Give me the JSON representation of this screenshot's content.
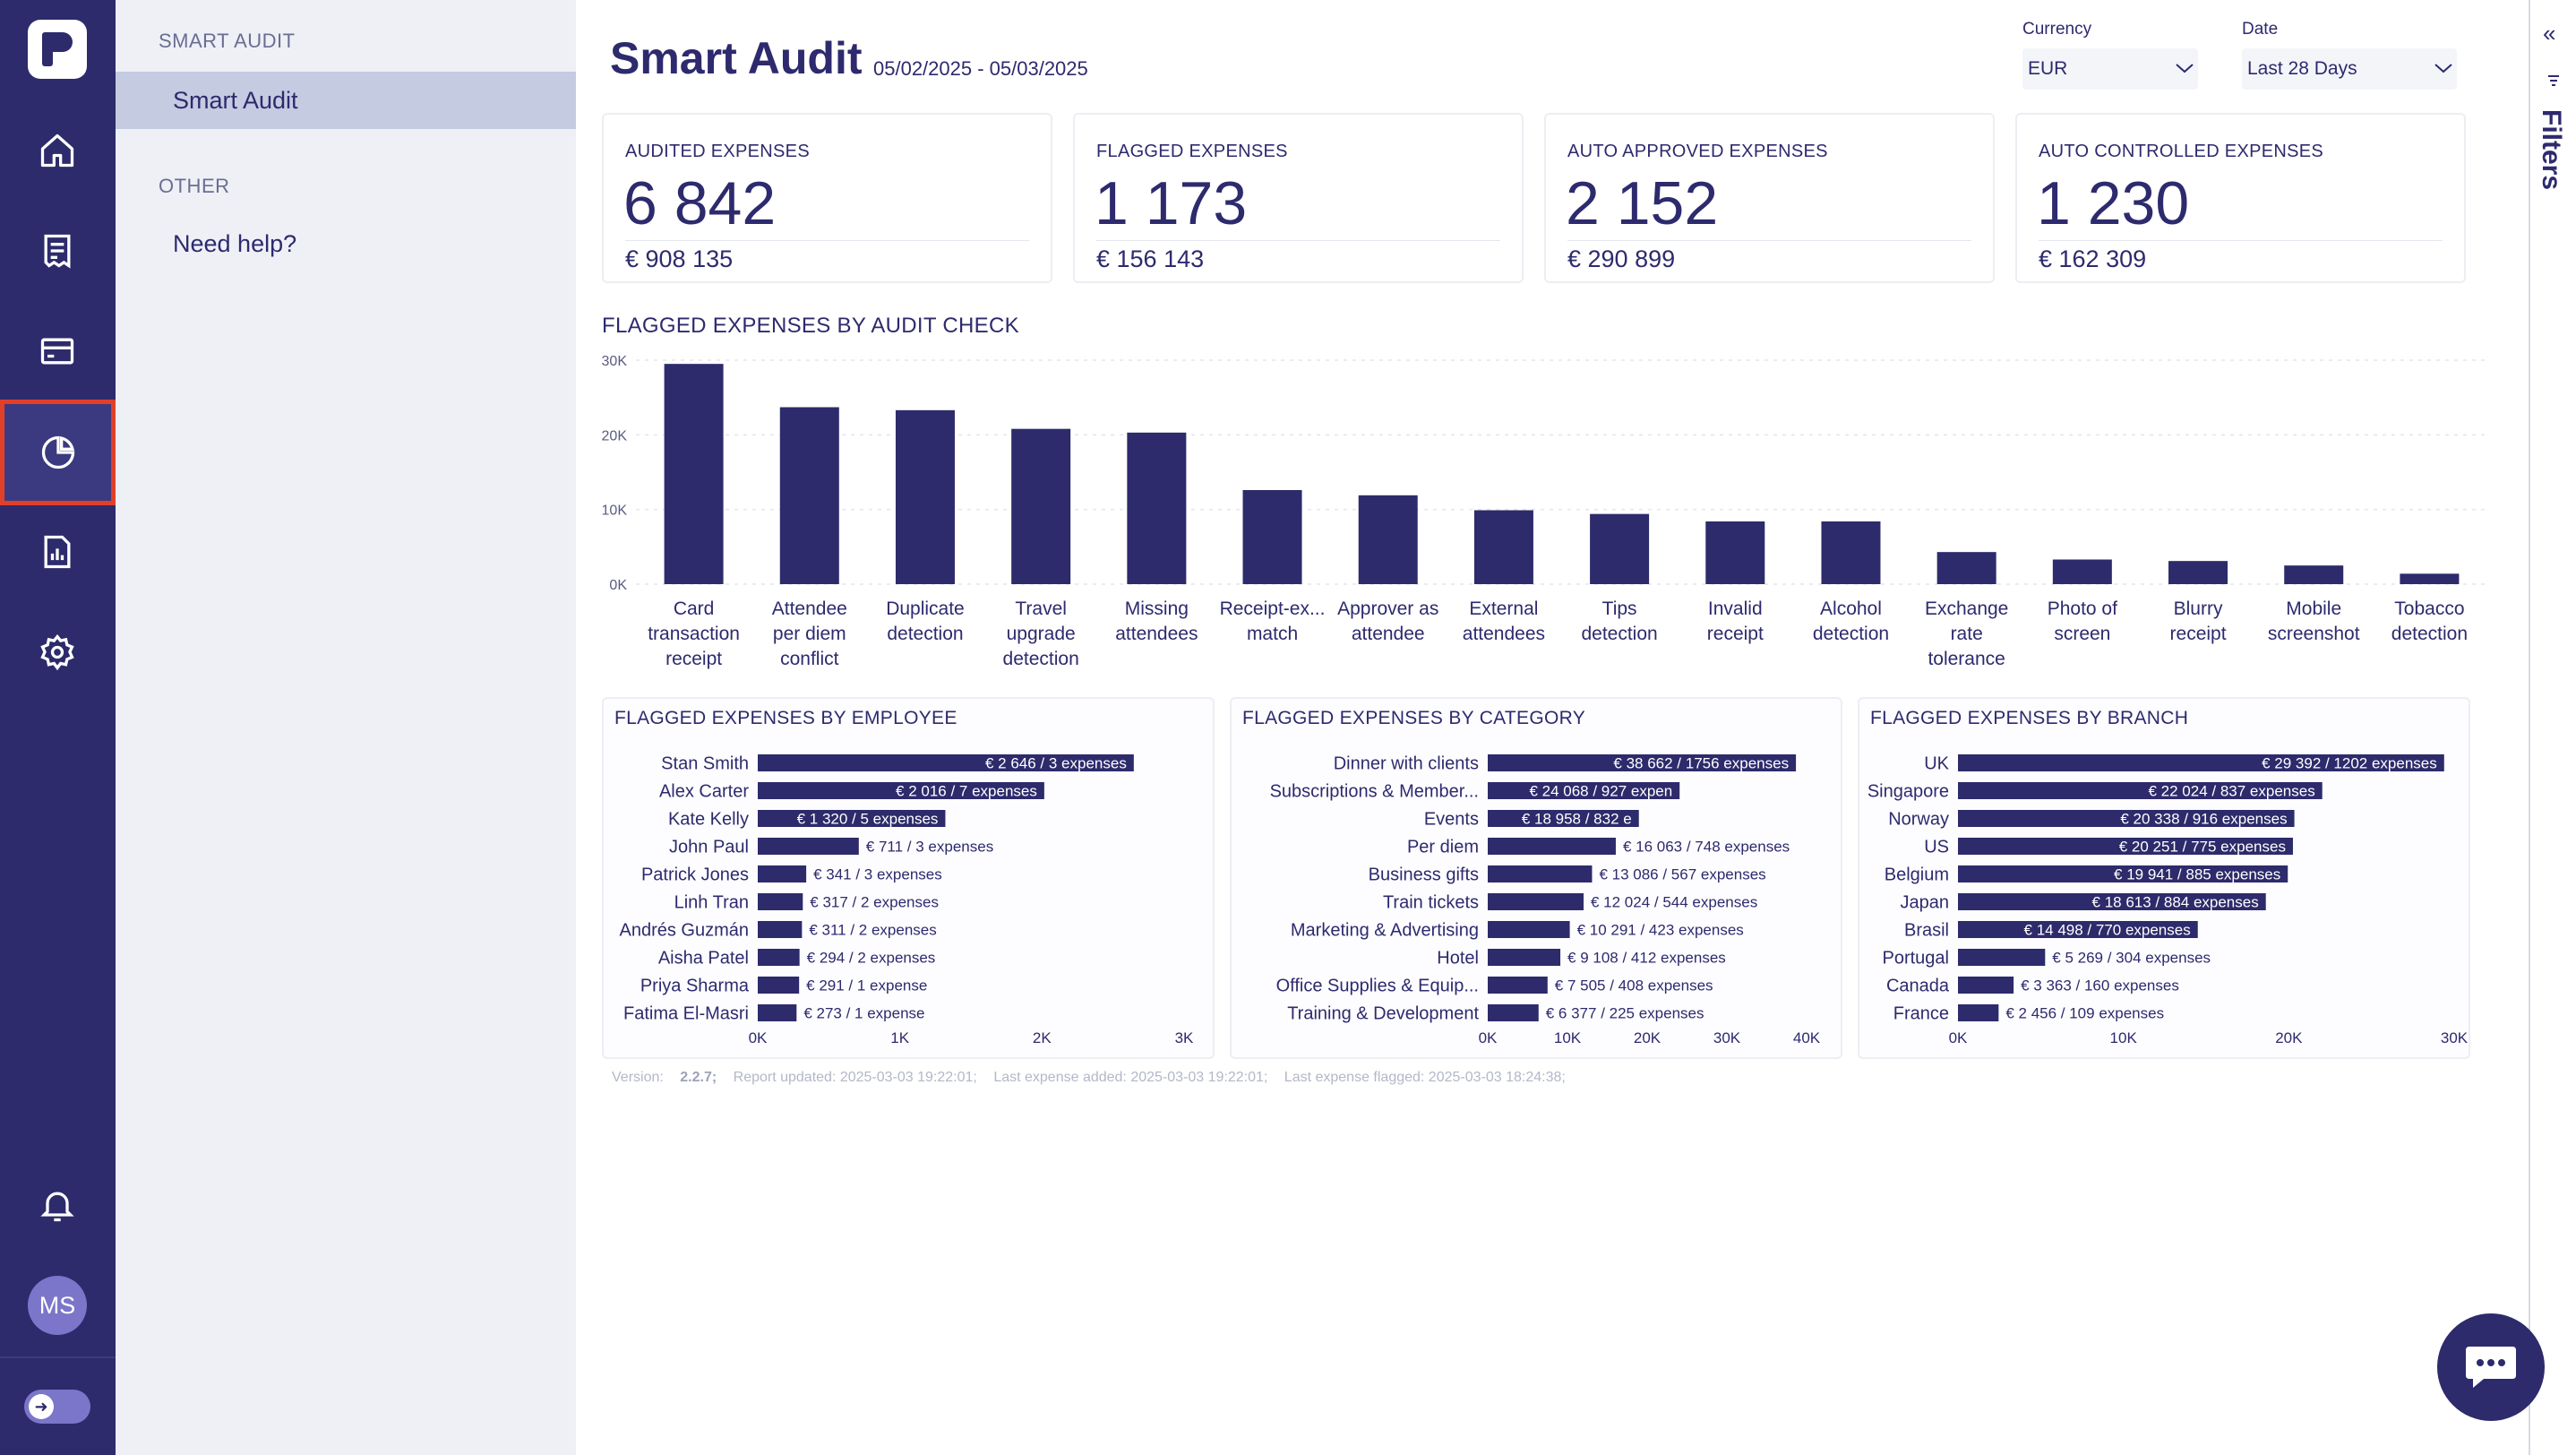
{
  "colors": {
    "rail": "#2d2b6b",
    "bar": "#2d2b6b",
    "accent_highlight": "#e0402a",
    "subnav_bg": "#eef0f6"
  },
  "rail": {
    "items": [
      {
        "name": "home-icon"
      },
      {
        "name": "receipt-icon"
      },
      {
        "name": "card-icon"
      },
      {
        "name": "pie-chart-icon",
        "active": true
      },
      {
        "name": "report-icon"
      },
      {
        "name": "gear-icon"
      }
    ],
    "bell_icon": "bell-icon",
    "avatar_initials": "MS"
  },
  "subnav": {
    "section_smart_audit": "SMART AUDIT",
    "item_smart_audit": "Smart Audit",
    "section_other": "OTHER",
    "item_need_help": "Need help?"
  },
  "header": {
    "title": "Smart Audit",
    "date_range": "05/02/2025 - 05/03/2025",
    "currency_label": "Currency",
    "currency_value": "EUR",
    "date_label": "Date",
    "date_value": "Last 28 Days"
  },
  "kpis": [
    {
      "label": "AUDITED EXPENSES",
      "count": "6 842",
      "amount": "€ 908 135"
    },
    {
      "label": "FLAGGED EXPENSES",
      "count": "1 173",
      "amount": "€ 156 143"
    },
    {
      "label": "AUTO APPROVED EXPENSES",
      "count": "2 152",
      "amount": "€ 290 899"
    },
    {
      "label": "AUTO CONTROLLED EXPENSES",
      "count": "1 230",
      "amount": "€ 162 309"
    }
  ],
  "chart_data": [
    {
      "type": "bar",
      "title": "FLAGGED EXPENSES BY AUDIT CHECK",
      "categories": [
        [
          "Card",
          "transaction",
          "receipt"
        ],
        [
          "Attendee",
          "per diem",
          "conflict"
        ],
        [
          "Duplicate",
          "detection"
        ],
        [
          "Travel",
          "upgrade",
          "detection"
        ],
        [
          "Missing",
          "attendees"
        ],
        [
          "Receipt-ex...",
          "match"
        ],
        [
          "Approver as",
          "attendee"
        ],
        [
          "External",
          "attendees"
        ],
        [
          "Tips",
          "detection"
        ],
        [
          "Invalid",
          "receipt"
        ],
        [
          "Alcohol",
          "detection"
        ],
        [
          "Exchange",
          "rate",
          "tolerance"
        ],
        [
          "Photo of",
          "screen"
        ],
        [
          "Blurry",
          "receipt"
        ],
        [
          "Mobile",
          "screenshot"
        ],
        [
          "Tobacco",
          "detection"
        ]
      ],
      "values": [
        29500,
        23700,
        23300,
        20800,
        20300,
        12600,
        11900,
        9900,
        9400,
        8400,
        8400,
        4300,
        3300,
        3100,
        2500,
        1400
      ],
      "ylim": [
        0,
        30000
      ],
      "yticks": [
        {
          "v": 0,
          "label": "0K"
        },
        {
          "v": 10000,
          "label": "10K"
        },
        {
          "v": 20000,
          "label": "20K"
        },
        {
          "v": 30000,
          "label": "30K"
        }
      ],
      "grid": true
    },
    {
      "type": "bar",
      "orientation": "horizontal",
      "title": "FLAGGED EXPENSES BY EMPLOYEE",
      "categories": [
        "Stan Smith",
        "Alex Carter",
        "Kate Kelly",
        "John Paul",
        "Patrick Jones",
        "Linh Tran",
        "Andrés Guzmán",
        "Aisha Patel",
        "Priya Sharma",
        "Fatima El-Masri"
      ],
      "values": [
        2646,
        2016,
        1320,
        711,
        341,
        317,
        311,
        294,
        291,
        273
      ],
      "labels": [
        "€ 2 646 / 3 expenses",
        "€ 2 016 / 7 expenses",
        "€ 1 320 / 5 expenses",
        "€ 711 / 3 expenses",
        "€ 341 / 3 expenses",
        "€ 317 / 2 expenses",
        "€ 311 / 2 expenses",
        "€ 294 / 2 expenses",
        "€ 291 / 1 expense",
        "€ 273 / 1 expense"
      ],
      "xlim": [
        0,
        3000
      ],
      "xticks": [
        {
          "v": 0,
          "label": "0K"
        },
        {
          "v": 1000,
          "label": "1K"
        },
        {
          "v": 2000,
          "label": "2K"
        },
        {
          "v": 3000,
          "label": "3K"
        }
      ]
    },
    {
      "type": "bar",
      "orientation": "horizontal",
      "title": "FLAGGED EXPENSES BY CATEGORY",
      "categories": [
        "Dinner with clients",
        "Subscriptions & Member...",
        "Events",
        "Per diem",
        "Business gifts",
        "Train tickets",
        "Marketing & Advertising",
        "Hotel",
        "Office Supplies & Equip...",
        "Training & Development"
      ],
      "values": [
        38662,
        24068,
        18958,
        16063,
        13086,
        12024,
        10291,
        9108,
        7505,
        6377
      ],
      "labels": [
        "€ 38 662 / 1756 expenses",
        "€ 24 068 / 927 expen",
        "€ 18 958 / 832 e",
        "€ 16 063 / 748 expenses",
        "€ 13 086 / 567 expenses",
        "€ 12 024 / 544 expenses",
        "€ 10 291 / 423 expenses",
        "€ 9 108 / 412 expenses",
        "€ 7 505 / 408 expenses",
        "€ 6 377 / 225 expenses"
      ],
      "xlim": [
        0,
        40000
      ],
      "xticks": [
        {
          "v": 0,
          "label": "0K"
        },
        {
          "v": 10000,
          "label": "10K"
        },
        {
          "v": 20000,
          "label": "20K"
        },
        {
          "v": 30000,
          "label": "30K"
        },
        {
          "v": 40000,
          "label": "40K"
        }
      ]
    },
    {
      "type": "bar",
      "orientation": "horizontal",
      "title": "FLAGGED EXPENSES BY BRANCH",
      "categories": [
        "UK",
        "Singapore",
        "Norway",
        "US",
        "Belgium",
        "Japan",
        "Brasil",
        "Portugal",
        "Canada",
        "France"
      ],
      "values": [
        29392,
        22024,
        20338,
        20251,
        19941,
        18613,
        14498,
        5269,
        3363,
        2456
      ],
      "labels": [
        "€ 29 392 / 1202 expenses",
        "€ 22 024 / 837 expenses",
        "€ 20 338 / 916 expenses",
        "€ 20 251 / 775 expenses",
        "€ 19 941 / 885 expenses",
        "€ 18 613 / 884 expenses",
        "€ 14 498 / 770 expenses",
        "€ 5 269 / 304 expenses",
        "€ 3 363 / 160 expenses",
        "€ 2 456 / 109 expenses"
      ],
      "xlim": [
        0,
        30000
      ],
      "xticks": [
        {
          "v": 0,
          "label": "0K"
        },
        {
          "v": 10000,
          "label": "10K"
        },
        {
          "v": 20000,
          "label": "20K"
        },
        {
          "v": 30000,
          "label": "30K"
        }
      ]
    }
  ],
  "footer": {
    "version_label": "Version:",
    "version": "2.2.7;",
    "report_updated": "Report updated: 2025-03-03 19:22:01;",
    "last_added": "Last expense added: 2025-03-03 19:22:01;",
    "last_flagged": "Last expense flagged: 2025-03-03 18:24:38;"
  },
  "filters_panel": {
    "label": "Filters",
    "collapse_icon": "double-chevron-left-icon",
    "filter_icon": "filter-icon"
  },
  "chat_icon": "chat-icon"
}
